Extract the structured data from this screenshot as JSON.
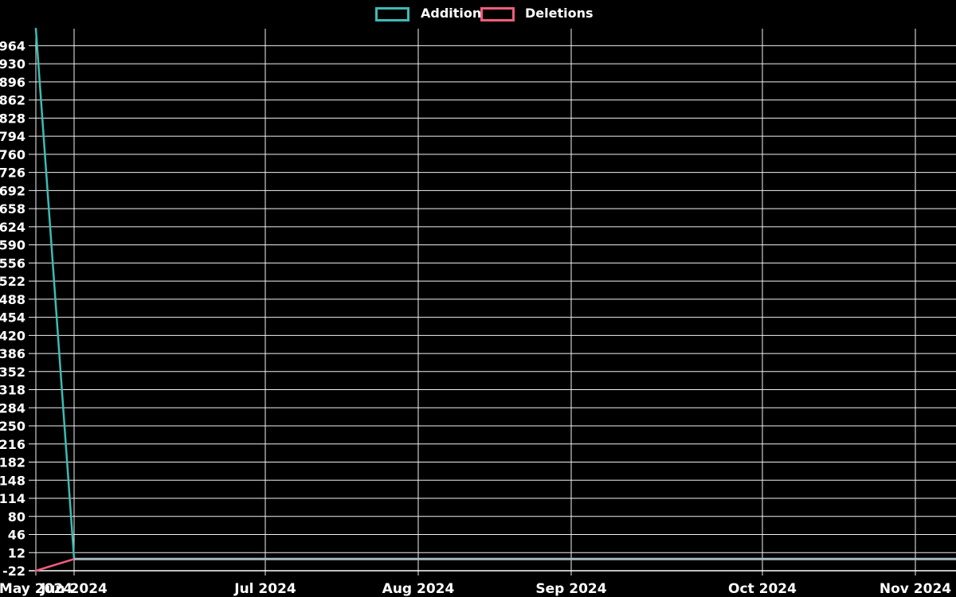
{
  "legend": {
    "items": [
      {
        "label": "Additions",
        "color": "#3cbcb6"
      },
      {
        "label": "Deletions",
        "color": "#f25c7d"
      }
    ],
    "position": "top-center"
  },
  "colors": {
    "background": "#000000",
    "grid": "#f2f2f2",
    "axis": "#ffffff",
    "text": "#ffffff",
    "additions": "#3cbcb6",
    "deletions": "#f25c7d",
    "overlap": "#a6b8c0"
  },
  "chart_data": {
    "type": "line",
    "title": "",
    "xlabel": "",
    "ylabel": "",
    "grid": true,
    "legend_position": "top-center",
    "x_unit": "week",
    "n_points": 25,
    "xlim_weeks": [
      0,
      24.06
    ],
    "ylim": [
      -22,
      996
    ],
    "y_ticks": [
      964,
      930,
      896,
      862,
      828,
      794,
      760,
      726,
      692,
      658,
      624,
      590,
      556,
      522,
      488,
      454,
      420,
      386,
      352,
      318,
      284,
      250,
      216,
      182,
      148,
      114,
      80,
      46,
      12,
      -22
    ],
    "x_ticks": [
      {
        "label": "May 2024",
        "week": 0
      },
      {
        "label": "Jun 2024",
        "week": 1
      },
      {
        "label": "Jul 2024",
        "week": 6
      },
      {
        "label": "Aug 2024",
        "week": 10
      },
      {
        "label": "Sep 2024",
        "week": 14
      },
      {
        "label": "Oct 2024",
        "week": 19
      },
      {
        "label": "Nov 2024",
        "week": 23
      }
    ],
    "series": [
      {
        "name": "Additions",
        "color": "#3cbcb6",
        "values": [
          996,
          0,
          0,
          0,
          0,
          0,
          0,
          0,
          0,
          0,
          0,
          0,
          0,
          0,
          0,
          0,
          0,
          0,
          0,
          0,
          0,
          0,
          0,
          0,
          0
        ]
      },
      {
        "name": "Deletions",
        "color": "#f25c7d",
        "values": [
          -22,
          0,
          0,
          0,
          0,
          0,
          0,
          0,
          0,
          0,
          0,
          0,
          0,
          0,
          0,
          0,
          0,
          0,
          0,
          0,
          0,
          0,
          0,
          0,
          0
        ]
      }
    ],
    "overlap_line": {
      "note": "Additions and Deletions both equal 0 from week 1 onward; overlapping lines render grey",
      "start_week": 1,
      "value": 0,
      "color": "#a6b8c0"
    }
  }
}
